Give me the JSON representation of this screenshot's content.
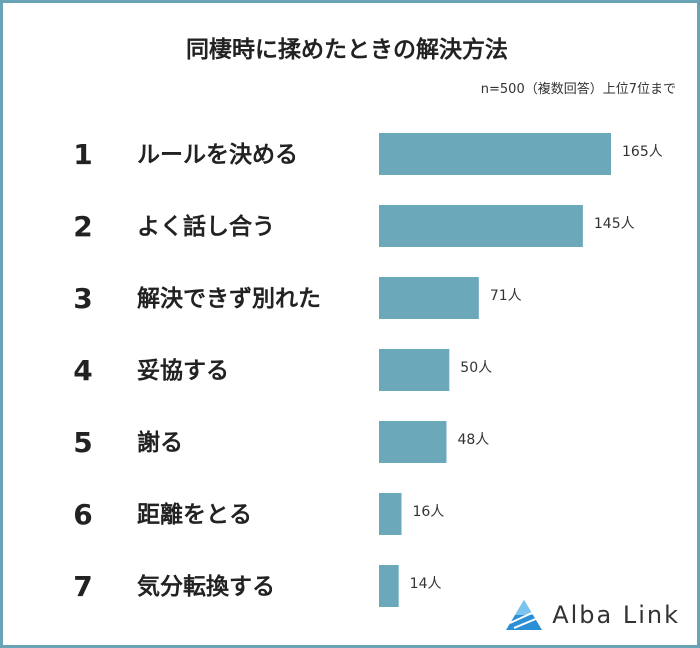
{
  "title": "同棲時に揉めたときの解決方法",
  "note": "n=500（複数回答）上位7位まで",
  "brand": "Alba Link",
  "colors": {
    "bar": "#6aa8ba",
    "frame": "#6aa3b6",
    "logo": "#2b8fd6"
  },
  "chart_data": {
    "type": "bar",
    "orientation": "horizontal",
    "title": "同棲時に揉めたときの解決方法",
    "ranks": [
      "1",
      "2",
      "3",
      "4",
      "5",
      "6",
      "7"
    ],
    "categories": [
      "ルールを決める",
      "よく話し合う",
      "解決できず別れた",
      "妥協する",
      "謝る",
      "距離をとる",
      "気分転換する"
    ],
    "values": [
      165,
      145,
      71,
      50,
      48,
      16,
      14
    ],
    "value_labels": [
      "165人",
      "145人",
      "71人",
      "50人",
      "48人",
      "16人",
      "14人"
    ],
    "xlim": [
      0,
      165
    ],
    "grid": false,
    "legend": "none"
  }
}
